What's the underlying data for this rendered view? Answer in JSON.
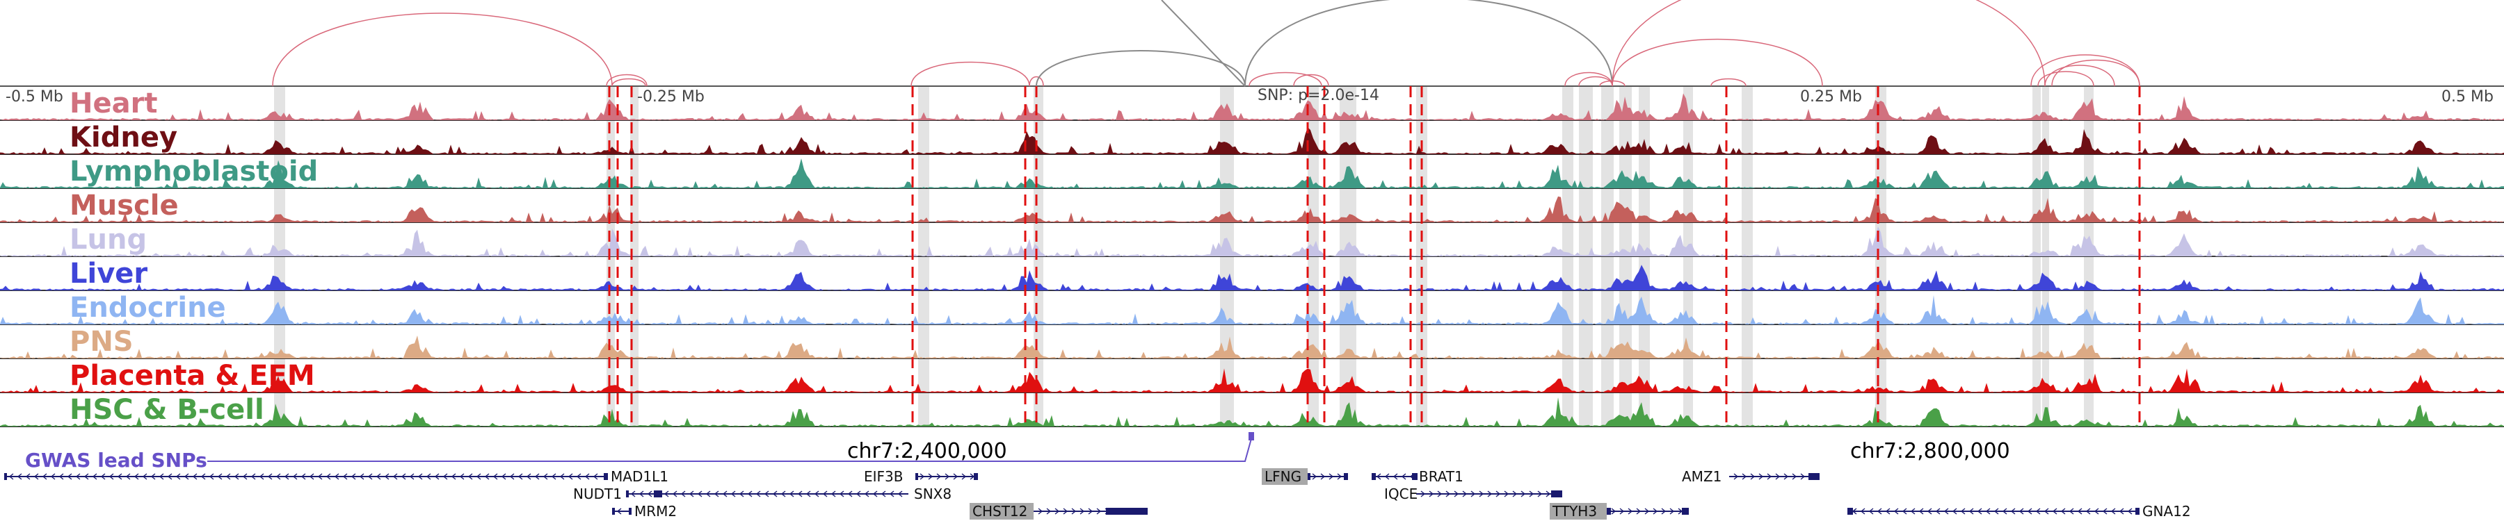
{
  "scale": {
    "ticks": [
      "-0.5 Mb",
      "-0.25 Mb",
      "0.25 Mb",
      "0.5 Mb"
    ],
    "snp_label": "SNP: p=2.0e-14"
  },
  "tracks": [
    {
      "label": "Heart",
      "color": "#d1717f"
    },
    {
      "label": "Kidney",
      "color": "#6e0f14"
    },
    {
      "label": "Lymphoblastoid",
      "color": "#3f9a85"
    },
    {
      "label": "Muscle",
      "color": "#c4605c"
    },
    {
      "label": "Lung",
      "color": "#c6c3e6"
    },
    {
      "label": "Liver",
      "color": "#3f45d8"
    },
    {
      "label": "Endocrine",
      "color": "#8fb5f2"
    },
    {
      "label": "PNS",
      "color": "#dcaa85"
    },
    {
      "label": "Placenta & EEM",
      "color": "#e01010"
    },
    {
      "label": "HSC & B-cell",
      "color": "#4aa048"
    }
  ],
  "coordinates": {
    "left": "chr7:2,400,000",
    "right": "chr7:2,800,000"
  },
  "gwas": {
    "label": "GWAS lead SNPs",
    "color": "#6650c8"
  },
  "genes": [
    {
      "name": "MAD1L1",
      "highlighted": false
    },
    {
      "name": "NUDT1",
      "highlighted": false
    },
    {
      "name": "MRM2",
      "highlighted": false
    },
    {
      "name": "EIF3B",
      "highlighted": false
    },
    {
      "name": "SNX8",
      "highlighted": false
    },
    {
      "name": "CHST12",
      "highlighted": true
    },
    {
      "name": "LFNG",
      "highlighted": true
    },
    {
      "name": "BRAT1",
      "highlighted": false
    },
    {
      "name": "IQCE",
      "highlighted": false
    },
    {
      "name": "TTYH3",
      "highlighted": true
    },
    {
      "name": "AMZ1",
      "highlighted": false
    },
    {
      "name": "GNA12",
      "highlighted": false
    }
  ],
  "colors": {
    "loop_pink": "#d9687a",
    "loop_gray": "#8a8a8a",
    "boundary_red": "#e01010",
    "gene_navy": "#1a1a6e",
    "highlight_band": "#d6d6d6"
  }
}
